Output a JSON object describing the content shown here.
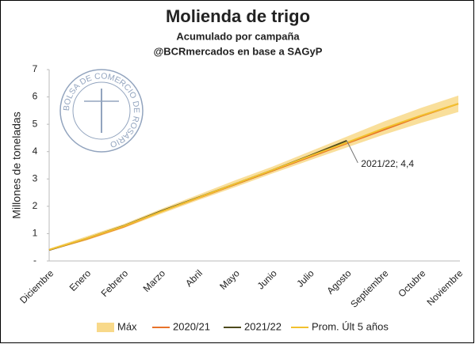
{
  "chart_data": {
    "type": "line",
    "title": "Molienda de trigo",
    "subtitle": "Acumulado por campaña",
    "source": "@BCRmercados en base a SAGyP",
    "y_label": "Millones de toneladas",
    "logo_text": "BOLSA DE COMERCIO DE ROSARIO",
    "categories": [
      "Diciembre",
      "Enero",
      "Febrero",
      "Marzo",
      "Abril",
      "Mayo",
      "Junio",
      "Julio",
      "Agosto",
      "Septiembre",
      "Octubre",
      "Noviembre"
    ],
    "ylim": [
      0,
      7
    ],
    "yticks": [
      {
        "value": 0,
        "label": "-"
      },
      1,
      2,
      3,
      4,
      5,
      6,
      7
    ],
    "series": [
      {
        "name": "Máx",
        "color": "#f8d98a",
        "kind": "band",
        "values": [
          0.45,
          0.9,
          1.35,
          1.9,
          2.42,
          2.95,
          3.45,
          4.0,
          4.55,
          5.1,
          5.6,
          6.05
        ],
        "lower": [
          0.38,
          0.75,
          1.2,
          1.72,
          2.22,
          2.7,
          3.2,
          3.68,
          4.15,
          4.62,
          5.05,
          5.45
        ]
      },
      {
        "name": "2020/21",
        "color": "#e8732a",
        "values": [
          0.4,
          0.8,
          1.25,
          1.8,
          2.3,
          2.8,
          3.3,
          3.8,
          4.3,
          4.8,
          5.3,
          5.75
        ]
      },
      {
        "name": "2021/22",
        "color": "#4d4a1c",
        "values": [
          0.4,
          0.82,
          1.28,
          1.82,
          2.32,
          2.82,
          3.32,
          3.85,
          4.4,
          null,
          null,
          null
        ]
      },
      {
        "name": "Prom. Últ 5 años",
        "color": "#f2c12e",
        "values": [
          0.41,
          0.82,
          1.27,
          1.8,
          2.31,
          2.82,
          3.32,
          3.83,
          4.33,
          4.85,
          5.32,
          5.75
        ]
      }
    ],
    "annotation": {
      "text": "2021/22; 4,4",
      "series": 2,
      "index": 8
    },
    "legend": "bottom"
  }
}
